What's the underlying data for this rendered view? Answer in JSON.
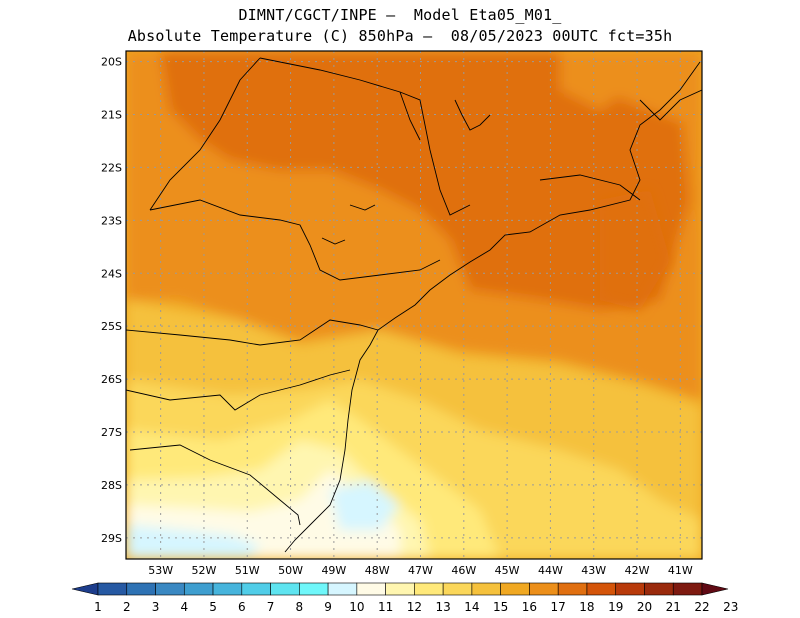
{
  "title": {
    "line1": "DIMNT/CGCT/INPE –  Model Eta05_M01_",
    "line2": "Absolute Temperature (C) 850hPa –  08/05/2023 00UTC fct=35h"
  },
  "map": {
    "lat_labels": [
      "20S",
      "21S",
      "22S",
      "23S",
      "24S",
      "25S",
      "26S",
      "27S",
      "28S",
      "29S"
    ],
    "lon_labels": [
      "53W",
      "52W",
      "51W",
      "50W",
      "49W",
      "48W",
      "47W",
      "46W",
      "45W",
      "44W",
      "43W",
      "42W",
      "41W"
    ],
    "lat_range": [
      -29.4,
      -19.8
    ],
    "lon_range": [
      -53.8,
      -40.5
    ]
  },
  "colorbar": {
    "values": [
      "1",
      "2",
      "3",
      "4",
      "5",
      "6",
      "7",
      "8",
      "9",
      "10",
      "11",
      "12",
      "13",
      "14",
      "15",
      "16",
      "17",
      "18",
      "19",
      "20",
      "21",
      "22",
      "23"
    ],
    "colors": [
      "#1d3d8c",
      "#2659a3",
      "#2e72b4",
      "#3a88c2",
      "#3e9ecf",
      "#46b4dc",
      "#50cde8",
      "#5ee4f0",
      "#6ff7fa",
      "#d6f6ff",
      "#fffbe6",
      "#fff6b0",
      "#ffe97a",
      "#fbd75a",
      "#f5c13c",
      "#f0a822",
      "#ec8f1a",
      "#e06f10",
      "#d45409",
      "#b83a0a",
      "#9a2a0c",
      "#7e1a10",
      "#600a14"
    ]
  }
}
